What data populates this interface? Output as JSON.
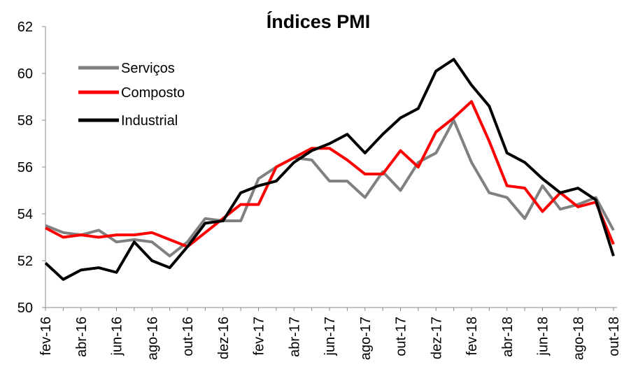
{
  "chart_data": {
    "type": "line",
    "title": "Índices PMI",
    "categories": [
      "fev-16",
      null,
      "abr-16",
      null,
      "jun-16",
      null,
      "ago-16",
      null,
      "out-16",
      null,
      "dez-16",
      null,
      "fev-17",
      null,
      "abr-17",
      null,
      "jun-17",
      null,
      "ago-17",
      null,
      "out-17",
      null,
      "dez-17",
      null,
      "fev-18",
      null,
      "abr-18",
      null,
      "jun-18",
      null,
      "ago-18",
      null,
      "out-18"
    ],
    "series": [
      {
        "name": "Serviços",
        "color": "#808080",
        "values": [
          53.5,
          53.2,
          53.1,
          53.3,
          52.8,
          52.9,
          52.8,
          52.2,
          52.8,
          53.8,
          53.7,
          53.7,
          55.5,
          56.0,
          56.4,
          56.3,
          55.4,
          55.4,
          54.7,
          55.8,
          55.0,
          56.2,
          56.6,
          58.0,
          56.2,
          54.9,
          54.7,
          53.8,
          55.2,
          54.2,
          54.4,
          54.7,
          53.3
        ]
      },
      {
        "name": "Composto",
        "color": "#ff0000",
        "values": [
          53.4,
          53.0,
          53.1,
          53.0,
          53.1,
          53.1,
          53.2,
          52.9,
          52.6,
          53.2,
          53.8,
          54.4,
          54.4,
          56.0,
          56.4,
          56.8,
          56.8,
          56.3,
          55.7,
          55.7,
          56.7,
          56.0,
          57.5,
          58.1,
          58.8,
          57.1,
          55.2,
          55.1,
          54.1,
          54.9,
          54.3,
          54.5,
          52.7
        ]
      },
      {
        "name": "Industrial",
        "color": "#000000",
        "values": [
          51.9,
          51.2,
          51.6,
          51.7,
          51.5,
          52.8,
          52.0,
          51.7,
          52.6,
          53.6,
          53.7,
          54.9,
          55.2,
          55.4,
          56.2,
          56.7,
          57.0,
          57.4,
          56.6,
          57.4,
          58.1,
          58.5,
          60.1,
          60.6,
          59.5,
          58.6,
          56.6,
          56.2,
          55.5,
          54.9,
          55.1,
          54.6,
          52.2
        ]
      }
    ],
    "ylim": [
      50,
      62
    ],
    "yticks": [
      50,
      52,
      54,
      56,
      58,
      60,
      62
    ],
    "grid": false
  }
}
